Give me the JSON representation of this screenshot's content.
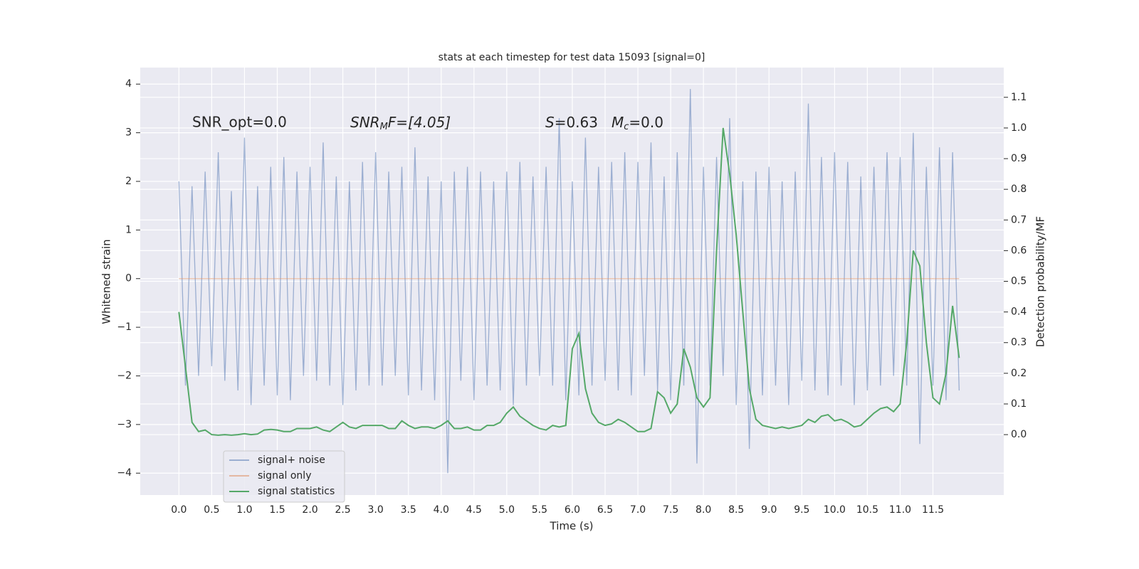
{
  "chart_data": {
    "type": "line",
    "title": "stats at each timestep for test data 15093 [signal=0]",
    "xlabel": "Time (s)",
    "ylabel": "Whitened strain",
    "y2label": "Detection probability/MF",
    "annotations": [
      "SNR_opt=0.0",
      [
        "SNR",
        "M",
        "F=[4.05]"
      ],
      [
        "S",
        "=0.63",
        "M",
        "c",
        "=0.0"
      ]
    ],
    "x": [
      0.0,
      0.1,
      0.2,
      0.3,
      0.4,
      0.5,
      0.6,
      0.7,
      0.8,
      0.9,
      1.0,
      1.1,
      1.2,
      1.3,
      1.4,
      1.5,
      1.6,
      1.7,
      1.8,
      1.9,
      2.0,
      2.1,
      2.2,
      2.3,
      2.4,
      2.5,
      2.6,
      2.7,
      2.8,
      2.9,
      3.0,
      3.1,
      3.2,
      3.3,
      3.4,
      3.5,
      3.6,
      3.7,
      3.8,
      3.9,
      4.0,
      4.1,
      4.2,
      4.3,
      4.4,
      4.5,
      4.6,
      4.7,
      4.8,
      4.9,
      5.0,
      5.1,
      5.2,
      5.3,
      5.4,
      5.5,
      5.6,
      5.7,
      5.8,
      5.9,
      6.0,
      6.1,
      6.2,
      6.3,
      6.4,
      6.5,
      6.6,
      6.7,
      6.8,
      6.9,
      7.0,
      7.1,
      7.2,
      7.3,
      7.4,
      7.5,
      7.6,
      7.7,
      7.8,
      7.9,
      8.0,
      8.1,
      8.2,
      8.3,
      8.4,
      8.5,
      8.6,
      8.7,
      8.8,
      8.9,
      9.0,
      9.1,
      9.2,
      9.3,
      9.4,
      9.5,
      9.6,
      9.7,
      9.8,
      9.9,
      10.0,
      10.1,
      10.2,
      10.3,
      10.4,
      10.5,
      10.6,
      10.7,
      10.8,
      10.9,
      11.0,
      11.1,
      11.2,
      11.3,
      11.4,
      11.5,
      11.6,
      11.7,
      11.8,
      11.9
    ],
    "series": [
      {
        "name": "signal+ noise",
        "color": "#4c72b0",
        "opacity": 0.5,
        "values": [
          2.0,
          -2.2,
          1.9,
          -2.0,
          2.2,
          -1.8,
          2.6,
          -2.1,
          1.8,
          -2.3,
          2.9,
          -2.6,
          1.9,
          -2.2,
          2.3,
          -2.4,
          2.5,
          -2.5,
          2.2,
          -2.0,
          2.3,
          -2.1,
          2.8,
          -2.2,
          2.1,
          -2.6,
          2.0,
          -2.3,
          2.4,
          -2.2,
          2.6,
          -2.2,
          2.2,
          -2.0,
          2.3,
          -2.4,
          2.7,
          -2.3,
          2.1,
          -2.5,
          2.0,
          -4.0,
          2.2,
          -2.1,
          2.3,
          -2.5,
          2.2,
          -2.2,
          2.0,
          -2.3,
          2.2,
          -2.6,
          2.4,
          -2.2,
          2.1,
          -2.0,
          2.3,
          -2.2,
          3.3,
          -2.5,
          2.0,
          -2.4,
          2.9,
          -2.2,
          2.3,
          -2.1,
          2.4,
          -2.3,
          2.6,
          -2.4,
          2.4,
          -2.0,
          2.8,
          -2.3,
          2.1,
          -2.5,
          2.6,
          -2.2,
          3.9,
          -3.8,
          2.3,
          -2.2,
          2.5,
          -2.0,
          3.3,
          -2.6,
          2.0,
          -3.5,
          2.2,
          -2.4,
          2.3,
          -2.2,
          2.0,
          -2.6,
          2.2,
          -2.1,
          3.6,
          -2.3,
          2.5,
          -2.4,
          2.6,
          -2.2,
          2.4,
          -2.6,
          2.1,
          -2.3,
          2.3,
          -2.2,
          2.6,
          -2.0,
          2.5,
          -2.2,
          3.0,
          -3.4,
          2.3,
          -2.2,
          2.7,
          -2.5,
          2.6,
          -2.3
        ]
      },
      {
        "name": "signal only",
        "color": "#dd8452",
        "opacity": 0.5,
        "x": [
          0.0,
          11.9
        ],
        "values": [
          0,
          0
        ]
      },
      {
        "name": "signal statistics",
        "color": "#55a868",
        "opacity": 1,
        "axis": "y2",
        "values": [
          0.4,
          0.22,
          0.04,
          0.01,
          0.015,
          0.0,
          -0.002,
          0.0,
          -0.002,
          0.0,
          0.003,
          0.0,
          0.002,
          0.015,
          0.017,
          0.015,
          0.01,
          0.01,
          0.02,
          0.02,
          0.02,
          0.025,
          0.015,
          0.01,
          0.025,
          0.04,
          0.025,
          0.02,
          0.03,
          0.03,
          0.03,
          0.03,
          0.02,
          0.02,
          0.045,
          0.03,
          0.02,
          0.025,
          0.025,
          0.02,
          0.03,
          0.045,
          0.02,
          0.02,
          0.025,
          0.015,
          0.015,
          0.03,
          0.03,
          0.04,
          0.07,
          0.09,
          0.06,
          0.045,
          0.03,
          0.02,
          0.015,
          0.03,
          0.025,
          0.03,
          0.28,
          0.33,
          0.15,
          0.07,
          0.04,
          0.03,
          0.035,
          0.05,
          0.04,
          0.025,
          0.01,
          0.01,
          0.02,
          0.14,
          0.12,
          0.07,
          0.1,
          0.28,
          0.22,
          0.12,
          0.09,
          0.12,
          0.6,
          1.0,
          0.85,
          0.65,
          0.4,
          0.15,
          0.05,
          0.03,
          0.025,
          0.02,
          0.025,
          0.02,
          0.025,
          0.03,
          0.05,
          0.04,
          0.06,
          0.065,
          0.045,
          0.05,
          0.04,
          0.025,
          0.03,
          0.05,
          0.07,
          0.085,
          0.09,
          0.075,
          0.1,
          0.3,
          0.6,
          0.55,
          0.3,
          0.12,
          0.1,
          0.2,
          0.42,
          0.25
        ]
      }
    ],
    "xlim": [
      -0.59,
      12.58
    ],
    "ylim": [
      -4.45,
      4.34
    ],
    "y2lim": [
      -0.197,
      1.197
    ],
    "xticks": [
      {
        "value": 0,
        "label": "0.0"
      },
      0.5,
      {
        "value": 1,
        "label": "1.0"
      },
      1.5,
      {
        "value": 2,
        "label": "2.0"
      },
      2.5,
      {
        "value": 3,
        "label": "3.0"
      },
      3.5,
      {
        "value": 4,
        "label": "4.0"
      },
      4.5,
      {
        "value": 5,
        "label": "5.0"
      },
      5.5,
      {
        "value": 6,
        "label": "6.0"
      },
      6.5,
      {
        "value": 7,
        "label": "7.0"
      },
      7.5,
      {
        "value": 8,
        "label": "8.0"
      },
      8.5,
      {
        "value": 9,
        "label": "9.0"
      },
      9.5,
      {
        "value": 10,
        "label": "10.0"
      },
      10.5,
      {
        "value": 11,
        "label": "11.0"
      },
      11.5
    ],
    "yticks": [
      {
        "value": -4,
        "label": "−4"
      },
      {
        "value": -3,
        "label": "−3"
      },
      {
        "value": -2,
        "label": "−2"
      },
      {
        "value": -1,
        "label": "−1"
      },
      0,
      1,
      2,
      3,
      4
    ],
    "y2ticks": [
      {
        "value": 0,
        "label": "0.0"
      },
      0.1,
      0.2,
      0.3,
      0.4,
      0.5,
      0.6,
      0.7,
      0.8,
      0.9,
      {
        "value": 1,
        "label": "1.0"
      },
      1.1
    ],
    "grid": true,
    "background": "#eaeaf2",
    "legend": "lower left"
  }
}
